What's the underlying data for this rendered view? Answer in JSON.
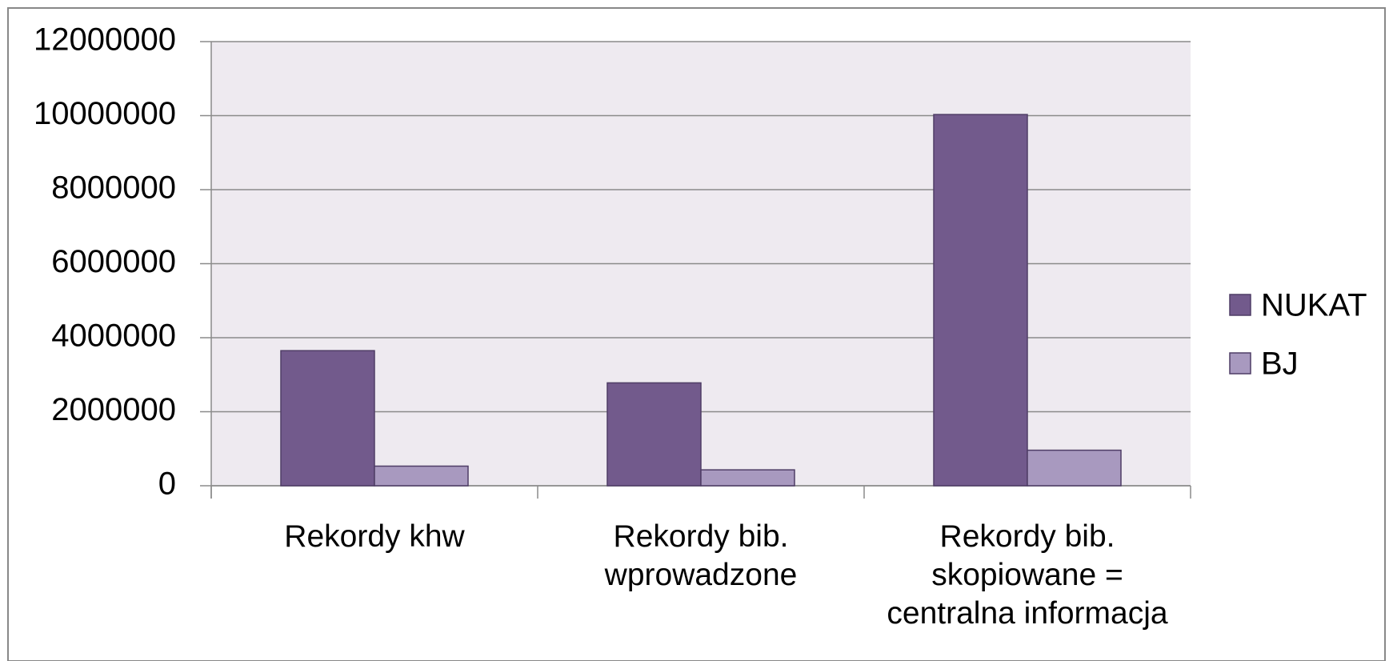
{
  "chart_data": {
    "type": "bar",
    "categories": [
      "Rekordy khw",
      "Rekordy bib.\nwprowadzone",
      "Rekordy bib.\nskopiowane =\ncentralna informacja"
    ],
    "series": [
      {
        "name": "NUKAT",
        "color": "#725a8c",
        "values": [
          3650000,
          2780000,
          10030000
        ]
      },
      {
        "name": "BJ",
        "color": "#a899bf",
        "values": [
          530000,
          430000,
          960000
        ]
      }
    ],
    "ylim": [
      0,
      12000000
    ],
    "yticks": [
      0,
      2000000,
      4000000,
      6000000,
      8000000,
      10000000,
      12000000
    ],
    "grid": true,
    "legend": "right"
  }
}
